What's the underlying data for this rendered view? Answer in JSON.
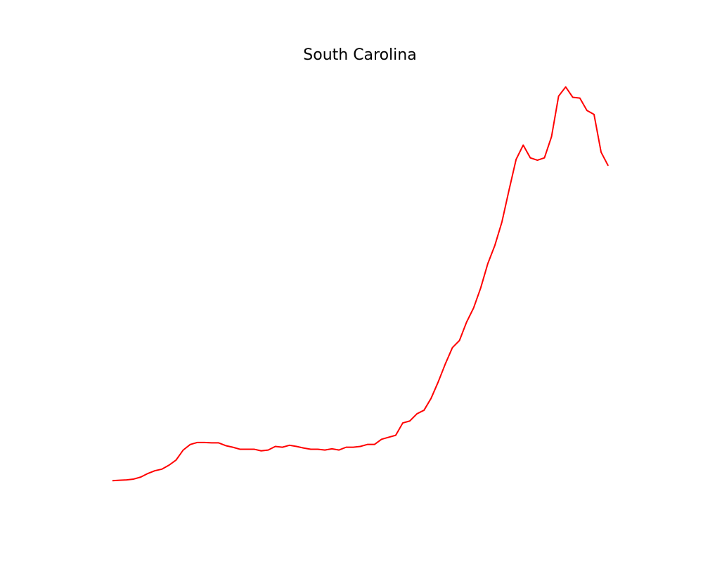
{
  "chart_data": {
    "type": "line",
    "title": "South Carolina",
    "color": "#ff0000",
    "values": [
      0,
      0.1,
      0.2,
      0.4,
      0.9,
      1.8,
      2.5,
      2.9,
      3.9,
      5.2,
      7.7,
      9.1,
      9.6,
      9.6,
      9.5,
      9.5,
      8.8,
      8.4,
      7.9,
      7.9,
      7.9,
      7.5,
      7.7,
      8.6,
      8.4,
      8.9,
      8.6,
      8.2,
      7.9,
      7.9,
      7.7,
      8.0,
      7.7,
      8.4,
      8.4,
      8.6,
      9.1,
      9.1,
      10.4,
      10.9,
      11.4,
      14.5,
      15.0,
      16.8,
      17.7,
      20.7,
      24.8,
      29.3,
      33.4,
      35.2,
      39.8,
      43.4,
      48.4,
      54.5,
      59.1,
      65.0,
      73.0,
      80.7,
      84.3,
      81.1,
      80.5,
      81.1,
      86.4,
      96.6,
      98.9,
      96.3,
      96.1,
      93.0,
      92.0,
      82.5,
      79.1
    ],
    "ylim": [
      -4.9,
      103.8
    ]
  }
}
